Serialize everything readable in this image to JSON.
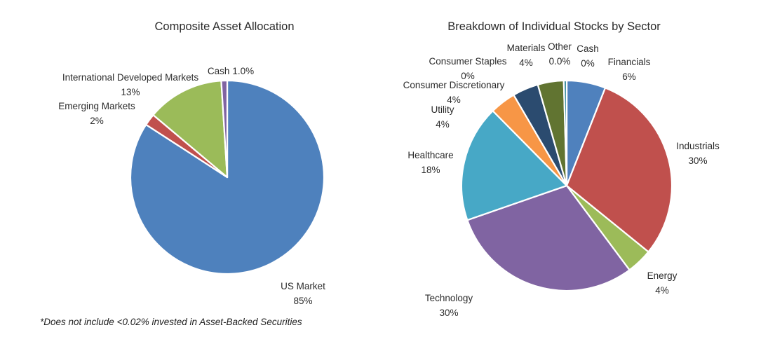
{
  "page": {
    "background": "#FFFFFF"
  },
  "chart_data": [
    {
      "type": "pie",
      "title": "Composite Asset Allocation",
      "footnote": "*Does not include <0.02% invested in Asset-Backed Securities",
      "legend_position": "none",
      "labels_on_chart": true,
      "start_angle_deg": 0,
      "direction": "clockwise",
      "slices": [
        {
          "label": "US Market",
          "pct_label": "85%",
          "value": 85,
          "color": "#4E81BD"
        },
        {
          "label": "Emerging Markets",
          "pct_label": "2%",
          "value": 2,
          "color": "#C0504D"
        },
        {
          "label": "International Developed Markets",
          "pct_label": "13%",
          "value": 13,
          "color": "#9BBB59"
        },
        {
          "label": "Cash",
          "pct_label": "1.0%",
          "value": 1.0,
          "color": "#8064A2"
        }
      ]
    },
    {
      "type": "pie",
      "title": "Breakdown of Individual Stocks by Sector",
      "legend_position": "none",
      "labels_on_chart": true,
      "start_angle_deg": 0,
      "direction": "clockwise",
      "slices": [
        {
          "label": "Financials",
          "pct_label": "6%",
          "value": 6,
          "color": "#4F81BD"
        },
        {
          "label": "Industrials",
          "pct_label": "30%",
          "value": 30,
          "color": "#C0504D"
        },
        {
          "label": "Energy",
          "pct_label": "4%",
          "value": 4,
          "color": "#9CBB59"
        },
        {
          "label": "Technology",
          "pct_label": "30%",
          "value": 30,
          "color": "#8064A2"
        },
        {
          "label": "Healthcare",
          "pct_label": "18%",
          "value": 18,
          "color": "#47A8C6"
        },
        {
          "label": "Utility",
          "pct_label": "4%",
          "value": 4,
          "color": "#F79646"
        },
        {
          "label": "Consumer Discretionary",
          "pct_label": "4%",
          "value": 4,
          "color": "#2B4B6F"
        },
        {
          "label": "Consumer Staples",
          "pct_label": "0%",
          "value": 0,
          "color": "#772C2A"
        },
        {
          "label": "Materials",
          "pct_label": "4%",
          "value": 4,
          "color": "#617431"
        },
        {
          "label": "Other",
          "pct_label": "0.0%",
          "value": 0.0,
          "color": "#604A7B"
        },
        {
          "label": "Cash",
          "pct_label": "0%",
          "value": 0,
          "draw_value": 0.45,
          "color": "#2E8499"
        }
      ]
    }
  ]
}
